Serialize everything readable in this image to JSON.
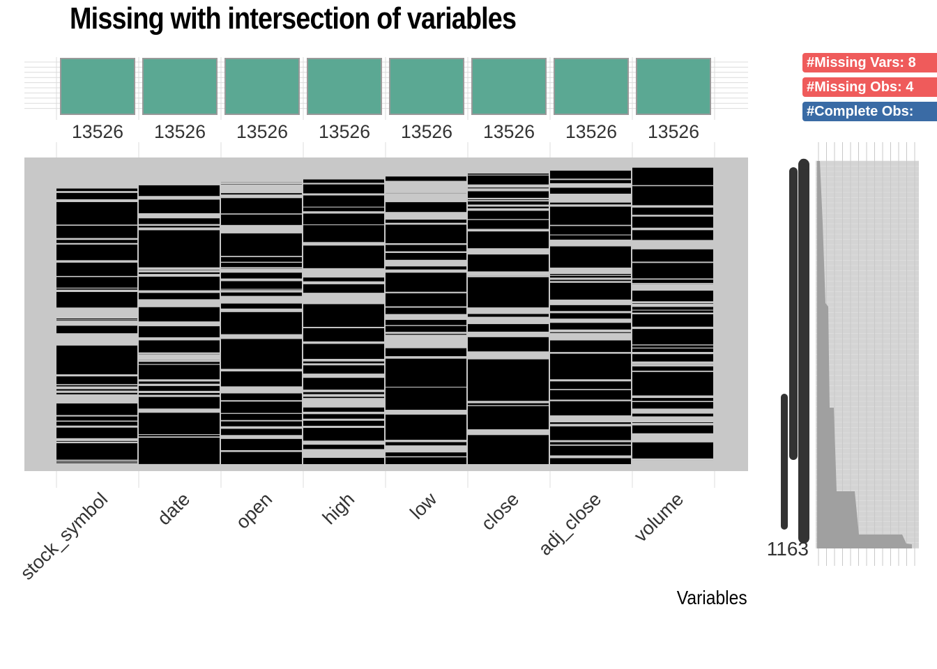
{
  "chart_data": {
    "type": "heatmap",
    "title": "Missing with intersection of variables",
    "xlabel": "Variables",
    "variables": [
      "stock_symbol",
      "date",
      "open",
      "high",
      "low",
      "close",
      "adj_close",
      "volume"
    ],
    "missing_counts": [
      13526,
      13526,
      13526,
      13526,
      13526,
      13526,
      13526,
      13526
    ],
    "cell_values": [
      "missing",
      "present"
    ],
    "colors": {
      "missing": "#000000",
      "present": "#C8C8C8",
      "count_bar": "#5BA893",
      "count_bar_border": "#999999",
      "frequency_area": "#A0A0A0",
      "badge_missing": "#EF5B5B",
      "badge_complete": "#3A6BA5"
    },
    "grid": true,
    "frequency_panel": {
      "type": "area",
      "y_tick_top": "2",
      "y_tick_bottom": "1163"
    },
    "badges": [
      {
        "label": "#Missing Vars: 8"
      },
      {
        "label": "#Missing Obs: 4"
      },
      {
        "label": "#Complete Obs:"
      }
    ]
  }
}
